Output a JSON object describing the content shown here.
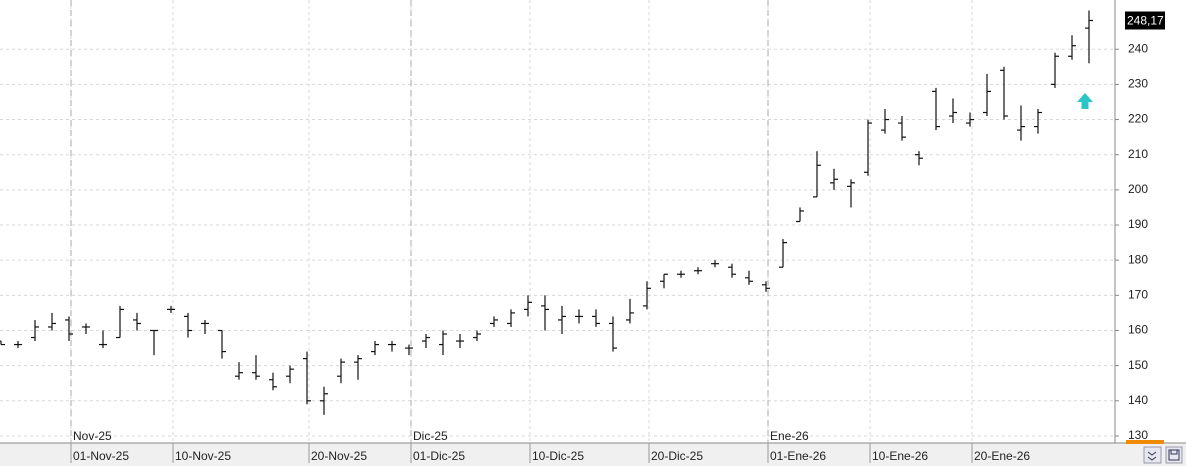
{
  "chart_data": {
    "type": "ohlc",
    "color": "#111111",
    "grid": true,
    "categories": [
      null,
      null,
      null,
      null,
      "01-Nov-25",
      null,
      null,
      null,
      null,
      null,
      "10-Nov-25",
      null,
      null,
      null,
      null,
      null,
      null,
      null,
      "20-Nov-25",
      null,
      null,
      null,
      null,
      null,
      "01-Dic-25",
      null,
      null,
      null,
      null,
      null,
      null,
      "10-Dic-25",
      null,
      null,
      null,
      null,
      null,
      null,
      "20-Dic-25",
      null,
      null,
      null,
      null,
      null,
      null,
      "01-Ene-26",
      null,
      null,
      null,
      null,
      null,
      "10-Ene-26",
      null,
      null,
      null,
      null,
      null,
      "20-Ene-26",
      null,
      null,
      null,
      null,
      null,
      null,
      null
    ],
    "month_labels": [
      null,
      null,
      null,
      null,
      "Nov-25",
      null,
      null,
      null,
      null,
      null,
      null,
      null,
      null,
      null,
      null,
      null,
      null,
      null,
      null,
      null,
      null,
      null,
      null,
      null,
      "Dic-25",
      null,
      null,
      null,
      null,
      null,
      null,
      null,
      null,
      null,
      null,
      null,
      null,
      null,
      null,
      null,
      null,
      null,
      null,
      null,
      null,
      "Ene-26",
      null,
      null,
      null,
      null,
      null,
      null,
      null,
      null,
      null,
      null,
      null,
      null,
      null,
      null,
      null,
      null,
      null,
      null,
      null
    ],
    "open": [
      157,
      156,
      158,
      161,
      163,
      161,
      156,
      158,
      163,
      160,
      166,
      164,
      162,
      160,
      147,
      148,
      146,
      147,
      152,
      140,
      147,
      151,
      154,
      156,
      155,
      157,
      156,
      157,
      158,
      162,
      162,
      166,
      167,
      163,
      164,
      164,
      162,
      163,
      167,
      174,
      176,
      177,
      179,
      178,
      175,
      173,
      178,
      191,
      198,
      202,
      201,
      205,
      217,
      219,
      210,
      228,
      221,
      219,
      222,
      234,
      217,
      218,
      230,
      238,
      246
    ],
    "high": [
      157,
      157,
      163,
      165,
      164,
      162,
      160,
      167,
      165,
      160,
      167,
      165,
      163,
      160,
      151,
      153,
      148,
      150,
      154,
      144,
      152,
      153,
      157,
      157,
      156,
      159,
      160,
      159,
      160,
      164,
      166,
      170,
      170,
      167,
      166,
      166,
      164,
      169,
      174,
      176,
      177,
      178,
      180,
      179,
      177,
      174,
      186,
      195,
      211,
      206,
      203,
      220,
      223,
      221,
      211,
      229,
      226,
      222,
      233,
      235,
      224,
      223,
      239,
      244,
      251
    ],
    "low": [
      156,
      155,
      157,
      160,
      157,
      159,
      155,
      158,
      160,
      153,
      165,
      158,
      159,
      152,
      146,
      146,
      143,
      145,
      139,
      136,
      145,
      146,
      153,
      154,
      153,
      155,
      153,
      155,
      157,
      161,
      161,
      164,
      160,
      159,
      162,
      161,
      154,
      162,
      166,
      172,
      175,
      176,
      178,
      175,
      173,
      171,
      178,
      191,
      198,
      200,
      195,
      204,
      216,
      214,
      207,
      217,
      219,
      218,
      221,
      220,
      214,
      216,
      229,
      237,
      236
    ],
    "close": [
      156,
      156,
      161,
      162,
      159,
      161,
      156,
      166,
      162,
      160,
      166,
      160,
      162,
      154,
      148,
      147,
      144,
      149,
      140,
      142,
      151,
      152,
      156,
      156,
      155,
      158,
      159,
      157,
      159,
      163,
      165,
      168,
      166,
      164,
      164,
      162,
      155,
      165,
      172,
      176,
      176,
      177,
      179,
      176,
      174,
      172,
      185,
      194,
      207,
      203,
      202,
      219,
      220,
      215,
      209,
      218,
      222,
      220,
      228,
      221,
      218,
      222,
      238,
      241,
      248.17
    ],
    "last_price": {
      "value": 248.17,
      "label": "248,17"
    },
    "ylim": [
      128,
      254
    ],
    "yticks": [
      130,
      140,
      150,
      160,
      170,
      180,
      190,
      200,
      210,
      220,
      230,
      240
    ]
  }
}
